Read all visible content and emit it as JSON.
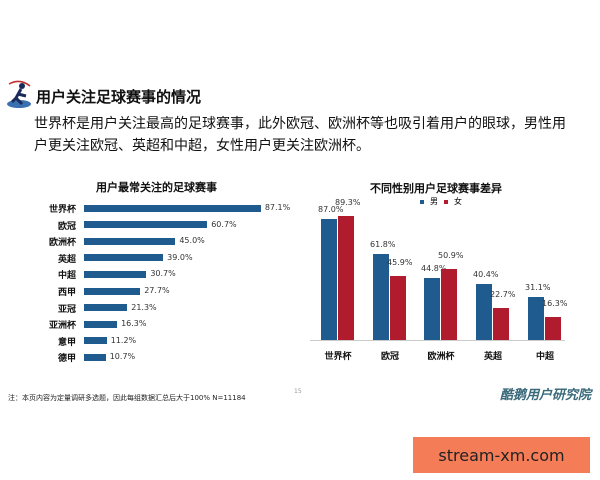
{
  "header": {
    "title": "用户关注足球赛事的情况",
    "subtitle_lines": [
      "世界杯是用户关注最高的足球赛事，此外欧冠、欧洲杯等也吸引着用户的眼球，男性用",
      "户更关注欧冠、英超和中超，女性用户更关注欧洲杯。"
    ]
  },
  "chart_data": [
    {
      "type": "bar",
      "orientation": "horizontal",
      "title": "用户最常关注的足球赛事",
      "categories": [
        "世界杯",
        "欧冠",
        "欧洲杯",
        "英超",
        "中超",
        "西甲",
        "亚冠",
        "亚洲杯",
        "意甲",
        "德甲"
      ],
      "values": [
        87.1,
        60.7,
        45.0,
        39.0,
        30.7,
        27.7,
        21.3,
        16.3,
        11.2,
        10.7
      ],
      "labels": [
        "87.1%",
        "60.7%",
        "45.0%",
        "39.0%",
        "30.7%",
        "27.7%",
        "21.3%",
        "16.3%",
        "11.2%",
        "10.7%"
      ],
      "unit": "%",
      "color": "#1f5b8f",
      "grid": false
    },
    {
      "type": "bar",
      "title": "不同性别用户足球赛事差异",
      "categories": [
        "世界杯",
        "欧冠",
        "欧洲杯",
        "英超",
        "中超"
      ],
      "series": [
        {
          "name": "男",
          "values": [
            87.0,
            61.8,
            44.8,
            40.4,
            31.1
          ],
          "labels": [
            "87.0%",
            "61.8%",
            "44.8%",
            "40.4%",
            "31.1%"
          ],
          "color": "#1f5b8f"
        },
        {
          "name": "女",
          "values": [
            89.3,
            45.9,
            50.9,
            22.7,
            16.3
          ],
          "labels": [
            "89.3%",
            "45.9%",
            "50.9%",
            "22.7%",
            "16.3%"
          ],
          "color": "#b01c2e"
        }
      ],
      "legend": "top",
      "unit": "%",
      "grid": false
    }
  ],
  "footer": {
    "note": "注：本页内容为定量调研多选题，因此每组数据汇总后大于100%  N=11184",
    "page_number": "15",
    "brand": "酷鹅用户研究院"
  },
  "watermark": "stream-xm.com"
}
